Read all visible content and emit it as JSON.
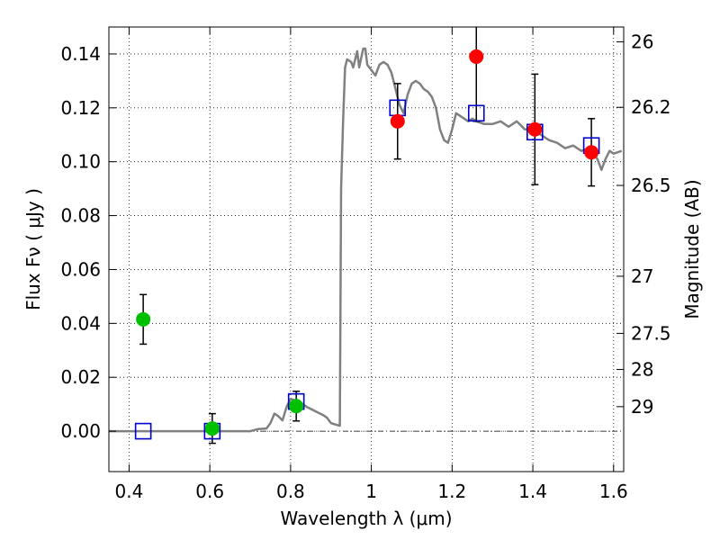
{
  "chart_data": {
    "type": "scatter",
    "xlabel": "Wavelength  λ (μm)",
    "ylabel": "Flux  Fν  ( μJy )",
    "y2label": "Magnitude (AB)",
    "xlim": [
      0.35,
      1.625
    ],
    "ylim": [
      -0.015,
      0.15
    ],
    "xticks": [
      {
        "value": 0.4,
        "label": "0.4"
      },
      {
        "value": 0.6,
        "label": "0.6"
      },
      {
        "value": 0.8,
        "label": "0.8"
      },
      {
        "value": 1.0,
        "label": "1"
      },
      {
        "value": 1.2,
        "label": "1.2"
      },
      {
        "value": 1.4,
        "label": "1.4"
      },
      {
        "value": 1.6,
        "label": "1.6"
      }
    ],
    "yticks": [
      {
        "value": 0.0,
        "label": "0.00"
      },
      {
        "value": 0.02,
        "label": "0.02"
      },
      {
        "value": 0.04,
        "label": "0.04"
      },
      {
        "value": 0.06,
        "label": "0.06"
      },
      {
        "value": 0.08,
        "label": "0.08"
      },
      {
        "value": 0.1,
        "label": "0.10"
      },
      {
        "value": 0.12,
        "label": "0.12"
      },
      {
        "value": 0.14,
        "label": "0.14"
      }
    ],
    "y2ticks": [
      {
        "flux": 0.1445,
        "label": "26"
      },
      {
        "flux": 0.1202,
        "label": "26.2"
      },
      {
        "flux": 0.0912,
        "label": "26.5"
      },
      {
        "flux": 0.0575,
        "label": "27"
      },
      {
        "flux": 0.0363,
        "label": "27.5"
      },
      {
        "flux": 0.0229,
        "label": "28"
      },
      {
        "flux": 0.0091,
        "label": "29"
      }
    ],
    "grid": true,
    "colors": {
      "template": "#808080",
      "detection": "#ff0000",
      "optical": "#00c000",
      "model": "#0000cc",
      "errorbar": "#000000"
    },
    "model_spectrum": [
      [
        0.35,
        0.0
      ],
      [
        0.7,
        0.0
      ],
      [
        0.72,
        0.0008
      ],
      [
        0.74,
        0.001
      ],
      [
        0.75,
        0.003
      ],
      [
        0.76,
        0.0065
      ],
      [
        0.77,
        0.0055
      ],
      [
        0.78,
        0.004
      ],
      [
        0.79,
        0.009
      ],
      [
        0.8,
        0.012
      ],
      [
        0.82,
        0.011
      ],
      [
        0.84,
        0.009
      ],
      [
        0.86,
        0.0075
      ],
      [
        0.88,
        0.006
      ],
      [
        0.89,
        0.005
      ],
      [
        0.9,
        0.003
      ],
      [
        0.91,
        0.0025
      ],
      [
        0.922,
        0.002
      ],
      [
        0.925,
        0.09
      ],
      [
        0.93,
        0.115
      ],
      [
        0.935,
        0.135
      ],
      [
        0.94,
        0.138
      ],
      [
        0.95,
        0.137
      ],
      [
        0.955,
        0.135
      ],
      [
        0.96,
        0.138
      ],
      [
        0.965,
        0.141
      ],
      [
        0.97,
        0.135
      ],
      [
        0.98,
        0.142
      ],
      [
        0.985,
        0.142
      ],
      [
        0.99,
        0.136
      ],
      [
        1.0,
        0.134
      ],
      [
        1.01,
        0.132
      ],
      [
        1.02,
        0.136
      ],
      [
        1.03,
        0.137
      ],
      [
        1.04,
        0.136
      ],
      [
        1.05,
        0.133
      ],
      [
        1.06,
        0.127
      ],
      [
        1.07,
        0.121
      ],
      [
        1.08,
        0.118
      ],
      [
        1.09,
        0.125
      ],
      [
        1.1,
        0.129
      ],
      [
        1.11,
        0.13
      ],
      [
        1.12,
        0.129
      ],
      [
        1.13,
        0.127
      ],
      [
        1.14,
        0.126
      ],
      [
        1.15,
        0.124
      ],
      [
        1.16,
        0.12
      ],
      [
        1.17,
        0.112
      ],
      [
        1.18,
        0.108
      ],
      [
        1.19,
        0.107
      ],
      [
        1.2,
        0.112
      ],
      [
        1.21,
        0.118
      ],
      [
        1.22,
        0.117
      ],
      [
        1.23,
        0.116
      ],
      [
        1.24,
        0.115
      ],
      [
        1.25,
        0.116
      ],
      [
        1.26,
        0.115
      ],
      [
        1.28,
        0.114
      ],
      [
        1.3,
        0.114
      ],
      [
        1.32,
        0.115
      ],
      [
        1.34,
        0.113
      ],
      [
        1.36,
        0.115
      ],
      [
        1.38,
        0.112
      ],
      [
        1.4,
        0.112
      ],
      [
        1.42,
        0.11
      ],
      [
        1.44,
        0.108
      ],
      [
        1.46,
        0.107
      ],
      [
        1.48,
        0.105
      ],
      [
        1.5,
        0.106
      ],
      [
        1.52,
        0.104
      ],
      [
        1.54,
        0.105
      ],
      [
        1.55,
        0.103
      ],
      [
        1.56,
        0.101
      ],
      [
        1.57,
        0.097
      ],
      [
        1.58,
        0.101
      ],
      [
        1.59,
        0.104
      ],
      [
        1.6,
        0.103
      ],
      [
        1.62,
        0.104
      ]
    ],
    "model_points": [
      {
        "x": 0.435,
        "y": 0.0
      },
      {
        "x": 0.606,
        "y": 0.0
      },
      {
        "x": 0.814,
        "y": 0.011
      },
      {
        "x": 1.065,
        "y": 0.12
      },
      {
        "x": 1.26,
        "y": 0.118
      },
      {
        "x": 1.405,
        "y": 0.111
      },
      {
        "x": 1.545,
        "y": 0.106
      }
    ],
    "optical_points": [
      {
        "x": 0.435,
        "y": 0.0415,
        "err": 0.0092
      },
      {
        "x": 0.606,
        "y": 0.001,
        "err": 0.0055
      },
      {
        "x": 0.814,
        "y": 0.0093,
        "err": 0.0055
      }
    ],
    "detection_points": [
      {
        "x": 1.065,
        "y": 0.115,
        "err": 0.014
      },
      {
        "x": 1.26,
        "y": 0.139,
        "err": 0.024
      },
      {
        "x": 1.405,
        "y": 0.112,
        "err": 0.0205
      },
      {
        "x": 1.545,
        "y": 0.1035,
        "err": 0.0125
      }
    ]
  }
}
